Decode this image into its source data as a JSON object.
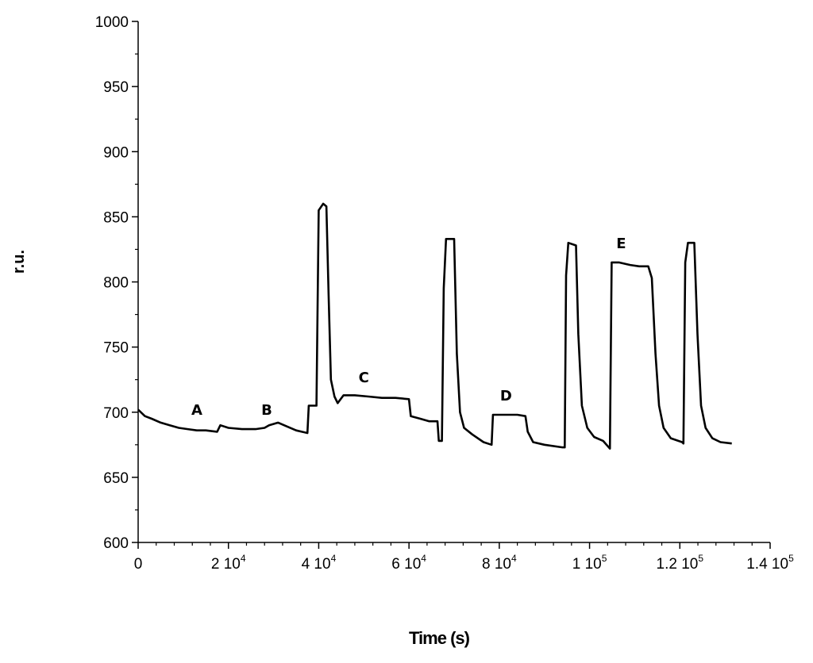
{
  "chart_data": {
    "type": "line",
    "title": "",
    "xlabel": "Time (s)",
    "ylabel": "r.u.",
    "xlim": [
      0,
      140000
    ],
    "ylim": [
      600,
      1000
    ],
    "grid": false,
    "legend": "none",
    "x_ticks": [
      {
        "value": 0,
        "base": "0",
        "exp": ""
      },
      {
        "value": 20000,
        "base": "2 10",
        "exp": "4"
      },
      {
        "value": 40000,
        "base": "4 10",
        "exp": "4"
      },
      {
        "value": 60000,
        "base": "6 10",
        "exp": "4"
      },
      {
        "value": 80000,
        "base": "8 10",
        "exp": "4"
      },
      {
        "value": 100000,
        "base": "1 10",
        "exp": "5"
      },
      {
        "value": 120000,
        "base": "1.2 10",
        "exp": "5"
      },
      {
        "value": 140000,
        "base": "1.4 10",
        "exp": "5"
      }
    ],
    "y_ticks": [
      600,
      650,
      700,
      750,
      800,
      850,
      900,
      950,
      1000
    ],
    "annotations": [
      {
        "text": "A",
        "x": 13000,
        "y": 698
      },
      {
        "text": "B",
        "x": 28500,
        "y": 698
      },
      {
        "text": "C",
        "x": 50000,
        "y": 723
      },
      {
        "text": "D",
        "x": 81500,
        "y": 709
      },
      {
        "text": "E",
        "x": 107000,
        "y": 826
      }
    ],
    "series": [
      {
        "color": "#000000",
        "points": [
          [
            0,
            702
          ],
          [
            1500,
            697
          ],
          [
            3000,
            695
          ],
          [
            5000,
            692
          ],
          [
            7000,
            690
          ],
          [
            9000,
            688
          ],
          [
            11000,
            687
          ],
          [
            13000,
            686
          ],
          [
            15000,
            686
          ],
          [
            17500,
            685
          ],
          [
            18200,
            690
          ],
          [
            20000,
            688
          ],
          [
            23000,
            687
          ],
          [
            26000,
            687
          ],
          [
            28000,
            688
          ],
          [
            29000,
            690
          ],
          [
            31000,
            692
          ],
          [
            33000,
            689
          ],
          [
            35000,
            686
          ],
          [
            37500,
            684
          ],
          [
            37800,
            705
          ],
          [
            39500,
            705
          ],
          [
            40000,
            855
          ],
          [
            41000,
            860
          ],
          [
            41700,
            858
          ],
          [
            42200,
            790
          ],
          [
            42700,
            725
          ],
          [
            43500,
            712
          ],
          [
            44200,
            707
          ],
          [
            45500,
            713
          ],
          [
            48000,
            713
          ],
          [
            51000,
            712
          ],
          [
            54000,
            711
          ],
          [
            57000,
            711
          ],
          [
            60000,
            710
          ],
          [
            60400,
            697
          ],
          [
            62500,
            695
          ],
          [
            64500,
            693
          ],
          [
            66300,
            693
          ],
          [
            66600,
            678
          ],
          [
            67300,
            678
          ],
          [
            67700,
            795
          ],
          [
            68200,
            833
          ],
          [
            70000,
            833
          ],
          [
            70600,
            745
          ],
          [
            71300,
            700
          ],
          [
            72200,
            688
          ],
          [
            74000,
            683
          ],
          [
            76500,
            677
          ],
          [
            78300,
            675
          ],
          [
            78600,
            698
          ],
          [
            81000,
            698
          ],
          [
            84000,
            698
          ],
          [
            85800,
            697
          ],
          [
            86300,
            685
          ],
          [
            87500,
            677
          ],
          [
            90000,
            675
          ],
          [
            94000,
            673
          ],
          [
            94500,
            673
          ],
          [
            94800,
            805
          ],
          [
            95300,
            830
          ],
          [
            97000,
            828
          ],
          [
            97500,
            760
          ],
          [
            98300,
            705
          ],
          [
            99500,
            688
          ],
          [
            101000,
            681
          ],
          [
            103000,
            678
          ],
          [
            104500,
            672
          ],
          [
            104900,
            815
          ],
          [
            106500,
            815
          ],
          [
            109000,
            813
          ],
          [
            111000,
            812
          ],
          [
            113000,
            812
          ],
          [
            113800,
            803
          ],
          [
            114600,
            745
          ],
          [
            115400,
            705
          ],
          [
            116400,
            688
          ],
          [
            118000,
            680
          ],
          [
            120500,
            677
          ],
          [
            120800,
            676
          ],
          [
            121200,
            815
          ],
          [
            121800,
            830
          ],
          [
            123200,
            830
          ],
          [
            123900,
            760
          ],
          [
            124700,
            705
          ],
          [
            125700,
            688
          ],
          [
            127200,
            680
          ],
          [
            129000,
            677
          ],
          [
            131500,
            676
          ]
        ]
      }
    ]
  }
}
